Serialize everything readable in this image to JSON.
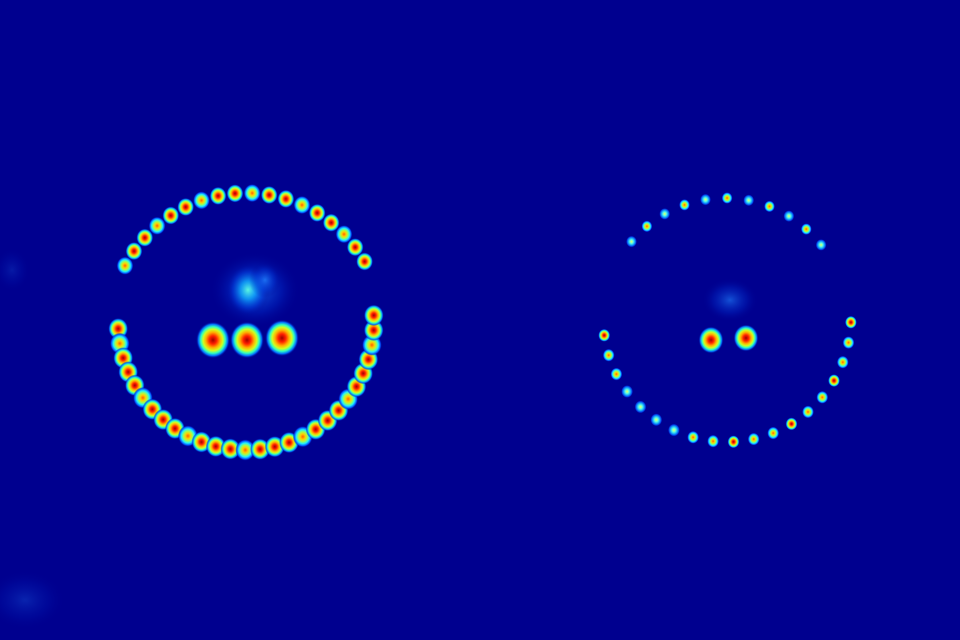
{
  "image": {
    "kind": "false-color intensity map",
    "colormap": "jet",
    "background_color": "#00008f",
    "panels": [
      {
        "name": "left-pattern",
        "ring_upper_spot_count": 18,
        "ring_lower_spot_count": 28,
        "central_spot_count": 3,
        "relative_intensity": "high"
      },
      {
        "name": "right-pattern",
        "ring_upper_spot_count": 11,
        "ring_lower_spot_count": 19,
        "central_spot_count": 2,
        "relative_intensity": "low"
      }
    ]
  }
}
